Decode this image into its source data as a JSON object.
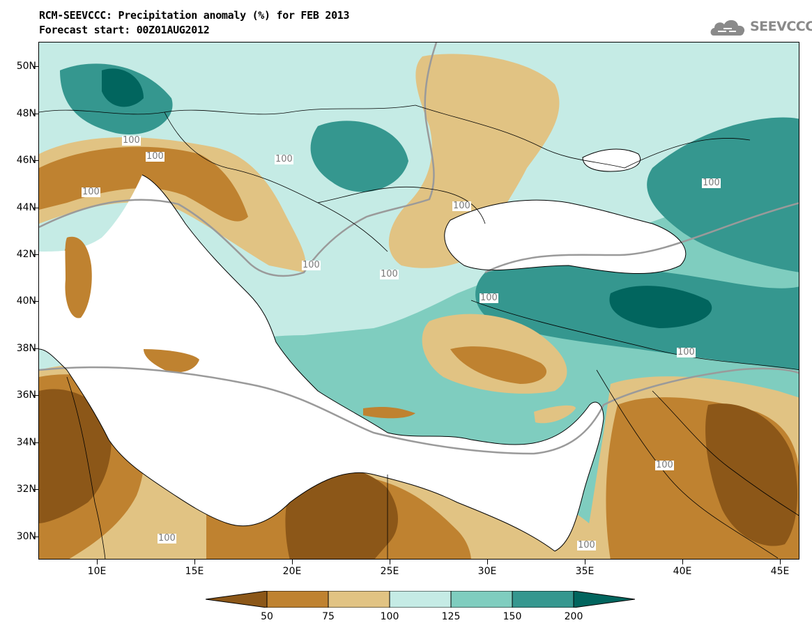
{
  "title": {
    "line1": "RCM-SEEVCCC: Precipitation anomaly (%) for FEB 2013",
    "line2": "Forecast start: 00Z01AUG2012"
  },
  "logo": {
    "text": "SEEVCCC",
    "icon": "cloud-logo-icon",
    "color": "#8a8a8a"
  },
  "map": {
    "variable": "precipitation-anomaly-percent",
    "lon_range": [
      7,
      46
    ],
    "lat_range": [
      29,
      51
    ],
    "lat_labels": [
      "50N",
      "48N",
      "46N",
      "44N",
      "42N",
      "40N",
      "38N",
      "36N",
      "34N",
      "32N",
      "30N"
    ],
    "lon_labels": [
      "10E",
      "15E",
      "20E",
      "25E",
      "30E",
      "35E",
      "40E",
      "45E"
    ],
    "contour_label_text": "100",
    "contour_labels": [
      {
        "text": "100",
        "lon": 11.8,
        "lat": 46.8
      },
      {
        "text": "100",
        "lon": 13.0,
        "lat": 46.1
      },
      {
        "text": "100",
        "lon": 9.7,
        "lat": 44.6
      },
      {
        "text": "100",
        "lon": 19.6,
        "lat": 46.0
      },
      {
        "text": "100",
        "lon": 28.7,
        "lat": 44.0
      },
      {
        "text": "100",
        "lon": 21.0,
        "lat": 41.5
      },
      {
        "text": "100",
        "lon": 25.0,
        "lat": 41.1
      },
      {
        "text": "100",
        "lon": 30.1,
        "lat": 40.1
      },
      {
        "text": "100",
        "lon": 41.5,
        "lat": 45.0
      },
      {
        "text": "100",
        "lon": 40.2,
        "lat": 37.8
      },
      {
        "text": "100",
        "lon": 39.1,
        "lat": 33.0
      },
      {
        "text": "100",
        "lon": 13.6,
        "lat": 29.9
      },
      {
        "text": "100",
        "lon": 35.1,
        "lat": 29.6
      }
    ]
  },
  "colorbar": {
    "bins": [
      {
        "color": "#8c5718"
      },
      {
        "color": "#bf8230"
      },
      {
        "color": "#e1c383"
      },
      {
        "color": "#c5ebe5"
      },
      {
        "color": "#7fcdbf"
      },
      {
        "color": "#35978f"
      },
      {
        "color": "#01655e"
      }
    ],
    "labels": [
      "50",
      "75",
      "100",
      "125",
      "150",
      "200"
    ]
  }
}
